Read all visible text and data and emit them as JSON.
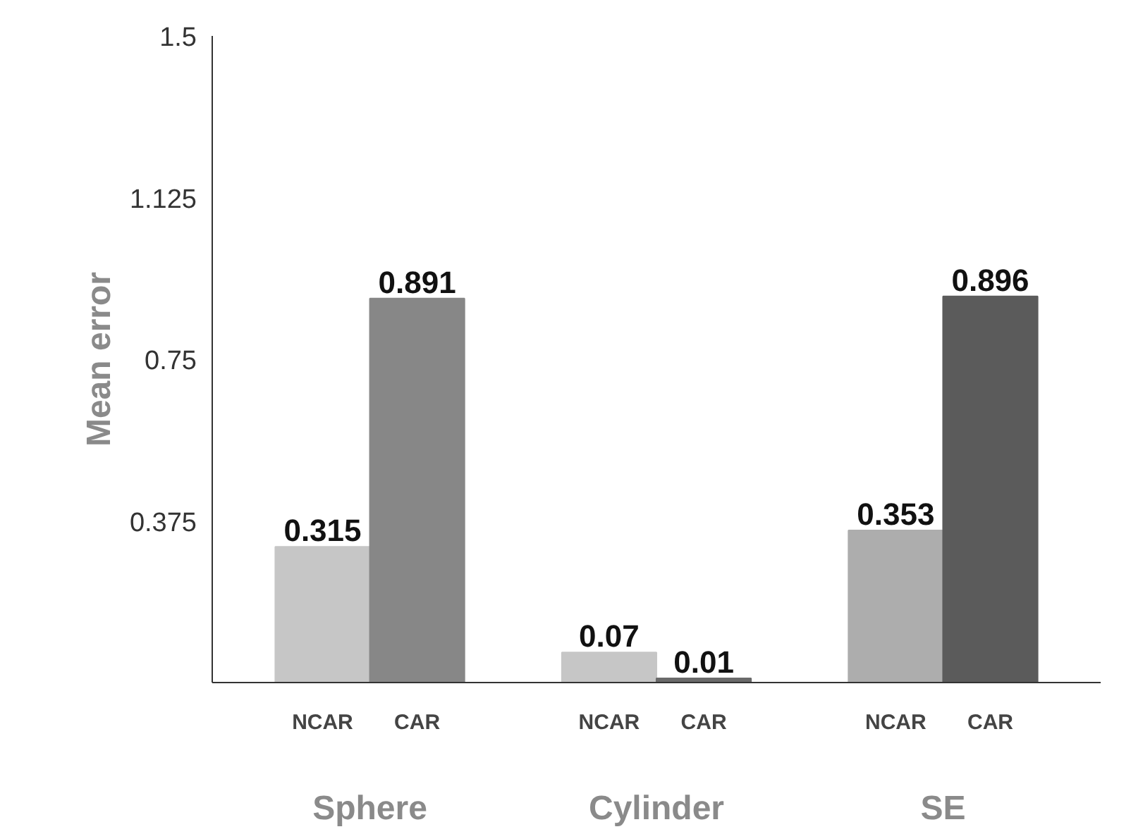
{
  "chart_data": {
    "type": "bar",
    "ylabel": "Mean error",
    "categories": [
      "Sphere",
      "Cylinder",
      "SE"
    ],
    "series": [
      {
        "name": "NCAR",
        "colors": [
          "#c6c6c6",
          "#c6c6c6",
          "#adadad"
        ],
        "values": [
          0.315,
          0.07,
          0.353
        ]
      },
      {
        "name": "CAR",
        "colors": [
          "#878787",
          "#6a6a6a",
          "#5b5b5b"
        ],
        "values": [
          0.891,
          0.01,
          0.896
        ]
      }
    ],
    "ylim": [
      0,
      1.5
    ],
    "yticks": [
      0.375,
      0.75,
      1.125,
      1.5
    ],
    "grid": false,
    "data_labels": true
  }
}
